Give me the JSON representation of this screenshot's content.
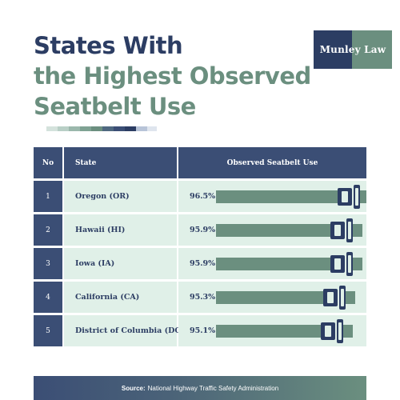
{
  "title": {
    "line1": "States With",
    "line2": "the Highest Observed",
    "line3": "Seatbelt Use"
  },
  "logo": {
    "text": "Munley Law"
  },
  "table": {
    "headers": {
      "no": "No",
      "state": "State",
      "use": "Observed Seatbelt Use"
    },
    "rows": [
      {
        "no": "1",
        "state": "Oregon (OR)",
        "pct": "96.5%"
      },
      {
        "no": "2",
        "state": "Hawaii (HI)",
        "pct": "95.9%"
      },
      {
        "no": "3",
        "state": "Iowa (IA)",
        "pct": "95.9%"
      },
      {
        "no": "4",
        "state": "California (CA)",
        "pct": "95.3%"
      },
      {
        "no": "5",
        "state": "District of Columbia (DC)",
        "pct": "95.1%"
      }
    ]
  },
  "footer": {
    "source_label": "Source:",
    "source_text": "National Highway Traffic Safety Administration"
  },
  "colors": {
    "navy": "#2c3d63",
    "header_navy": "#3b4e75",
    "green": "#6b8f7f",
    "row_bg": "#e0f0e8"
  },
  "chart_data": {
    "type": "table",
    "columns": [
      "No",
      "State",
      "Observed Seatbelt Use"
    ],
    "categories": [
      "Oregon (OR)",
      "Hawaii (HI)",
      "Iowa (IA)",
      "California (CA)",
      "District of Columbia (DC)"
    ],
    "values": [
      96.5,
      95.9,
      95.9,
      95.3,
      95.1
    ],
    "title": "States With the Highest Observed Seatbelt Use",
    "unit": "%"
  }
}
